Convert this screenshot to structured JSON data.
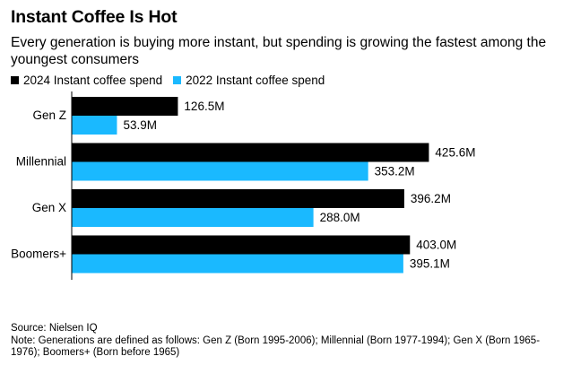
{
  "title": "Instant Coffee Is Hot",
  "subtitle": "Every generation is buying more instant, but spending is growing the fastest among the youngest consumers",
  "legend": [
    {
      "label": "2024 Instant coffee spend",
      "color": "#000000"
    },
    {
      "label": "2022 Instant coffee spend",
      "color": "#1ab9ff"
    }
  ],
  "chart_data": {
    "type": "bar",
    "orientation": "horizontal",
    "categories": [
      "Gen Z",
      "Millennial",
      "Gen X",
      "Boomers+"
    ],
    "series": [
      {
        "name": "2024 Instant coffee spend",
        "color": "#000000",
        "values": [
          126.5,
          425.6,
          396.2,
          403.0
        ],
        "labels": [
          "126.5M",
          "425.6M",
          "396.2M",
          "403.0M"
        ]
      },
      {
        "name": "2022 Instant coffee spend",
        "color": "#1ab9ff",
        "values": [
          53.9,
          353.2,
          288.0,
          395.1
        ],
        "labels": [
          "53.9M",
          "353.2M",
          "288.0M",
          "395.1M"
        ]
      }
    ],
    "xlim": [
      0,
      470
    ],
    "legend_position": "top-left",
    "grid": false
  },
  "footer": {
    "source": "Source: Nielsen IQ",
    "note": "Note: Generations are defined as follows: Gen Z (Born 1995-2006); Millennial (Born 1977-1994); Gen X (Born 1965-1976); Boomers+ (Born before 1965)"
  }
}
